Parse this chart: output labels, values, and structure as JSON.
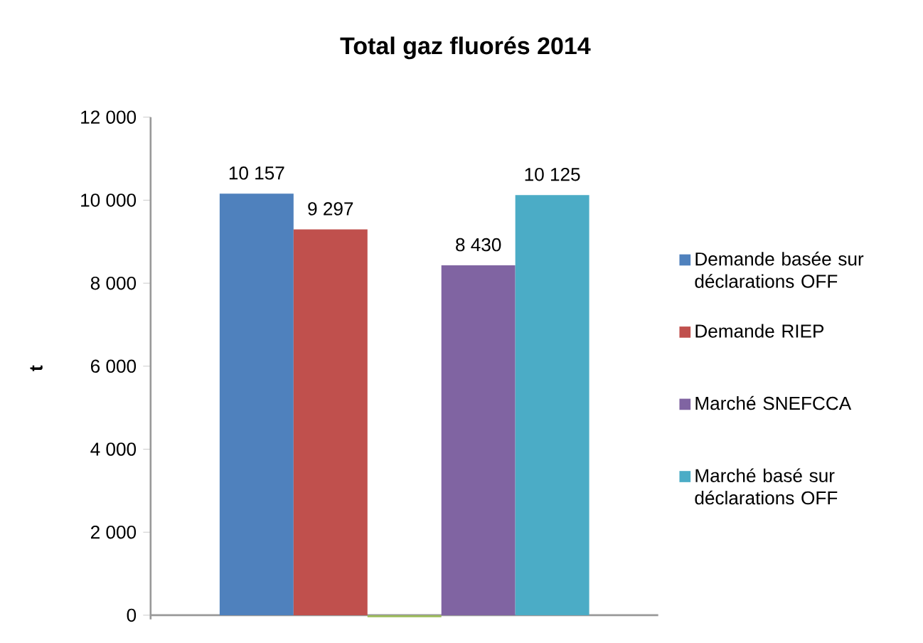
{
  "chart_data": {
    "type": "bar",
    "title": "Total gaz fluorés 2014",
    "ylabel": "t",
    "categories": [
      null
    ],
    "series": [
      {
        "name": "Demande basée sur déclarations OFF",
        "color": "#4f81bd",
        "values": [
          10157
        ],
        "value_labels": [
          "10 157"
        ]
      },
      {
        "name": "Demande RIEP",
        "color": "#c0504d",
        "values": [
          9297
        ],
        "value_labels": [
          "9 297"
        ]
      },
      {
        "color": "#9bbb59",
        "values": [
          -50
        ],
        "value_labels": [
          null
        ]
      },
      {
        "name": "Marché SNEFCCA",
        "color": "#8064a2",
        "values": [
          8430
        ],
        "value_labels": [
          "8 430"
        ]
      },
      {
        "name": "Marché basé sur déclarations OFF",
        "color": "#4bacc6",
        "values": [
          10125
        ],
        "value_labels": [
          "10 125"
        ]
      }
    ],
    "ylim": [
      -100,
      12000
    ],
    "yticks": [
      {
        "value": 0,
        "label": "0"
      },
      {
        "value": 2000,
        "label": "2 000"
      },
      {
        "value": 4000,
        "label": "4 000"
      },
      {
        "value": 6000,
        "label": "6 000"
      },
      {
        "value": 8000,
        "label": "8 000"
      },
      {
        "value": 10000,
        "label": "10 000"
      },
      {
        "value": 12000,
        "label": "12 000"
      }
    ],
    "legend": "right"
  }
}
